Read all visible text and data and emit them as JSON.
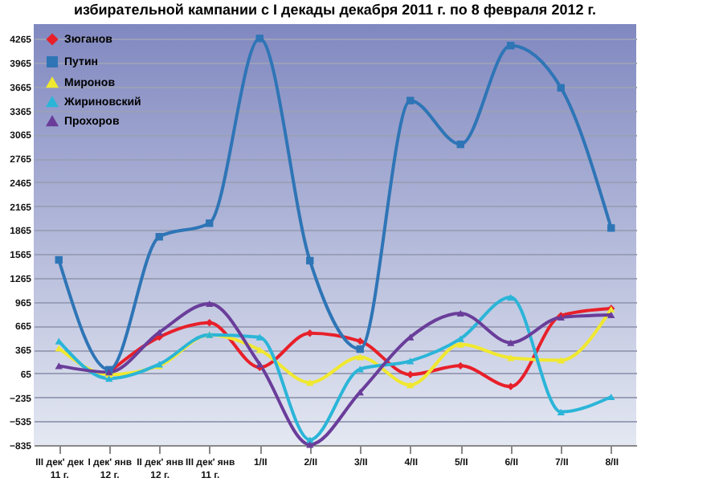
{
  "chart_data": {
    "type": "line",
    "title": "избирательной кампании с I декады декабря 2011 г. по 8 февраля 2012 г.",
    "categories": [
      "III дек' дек\n11 г.",
      "I дек' янв\n12 г.",
      "II дек' янв\n12 г.",
      "III дек' янв\n11 г.",
      "1/II",
      "2/II",
      "3/II",
      "4/II",
      "5/II",
      "6/II",
      "7/II",
      "8/II"
    ],
    "series": [
      {
        "name": "Зюганов",
        "color": "#e8202a",
        "marker": "diamond",
        "values": [
          null,
          80,
          520,
          700,
          140,
          570,
          470,
          50,
          160,
          -100,
          790,
          880
        ]
      },
      {
        "name": "Путин",
        "color": "#2e75b6",
        "marker": "square",
        "values": [
          1490,
          110,
          1780,
          1950,
          4270,
          1480,
          370,
          3490,
          2940,
          4180,
          3650,
          1890
        ]
      },
      {
        "name": "Миронов",
        "color": "#f0e830",
        "marker": "triangle",
        "values": [
          380,
          50,
          160,
          550,
          360,
          -50,
          270,
          -80,
          430,
          260,
          230,
          870
        ]
      },
      {
        "name": "Жириновский",
        "color": "#2bb5d8",
        "marker": "triangle",
        "values": [
          470,
          0,
          180,
          550,
          520,
          -770,
          120,
          220,
          500,
          1020,
          -420,
          -230
        ]
      },
      {
        "name": "Прохоров",
        "color": "#6a3d9a",
        "marker": "triangle",
        "values": [
          160,
          80,
          580,
          940,
          180,
          -830,
          -170,
          520,
          820,
          450,
          770,
          800
        ]
      }
    ],
    "ylim": [
      -835,
      4450
    ],
    "yticks": [
      -835,
      -535,
      -235,
      65,
      365,
      665,
      965,
      1265,
      1565,
      1865,
      2165,
      2465,
      2765,
      3065,
      3365,
      3665,
      3965,
      4265
    ],
    "grid": "y",
    "legend": "top left",
    "line_style": "solid"
  }
}
